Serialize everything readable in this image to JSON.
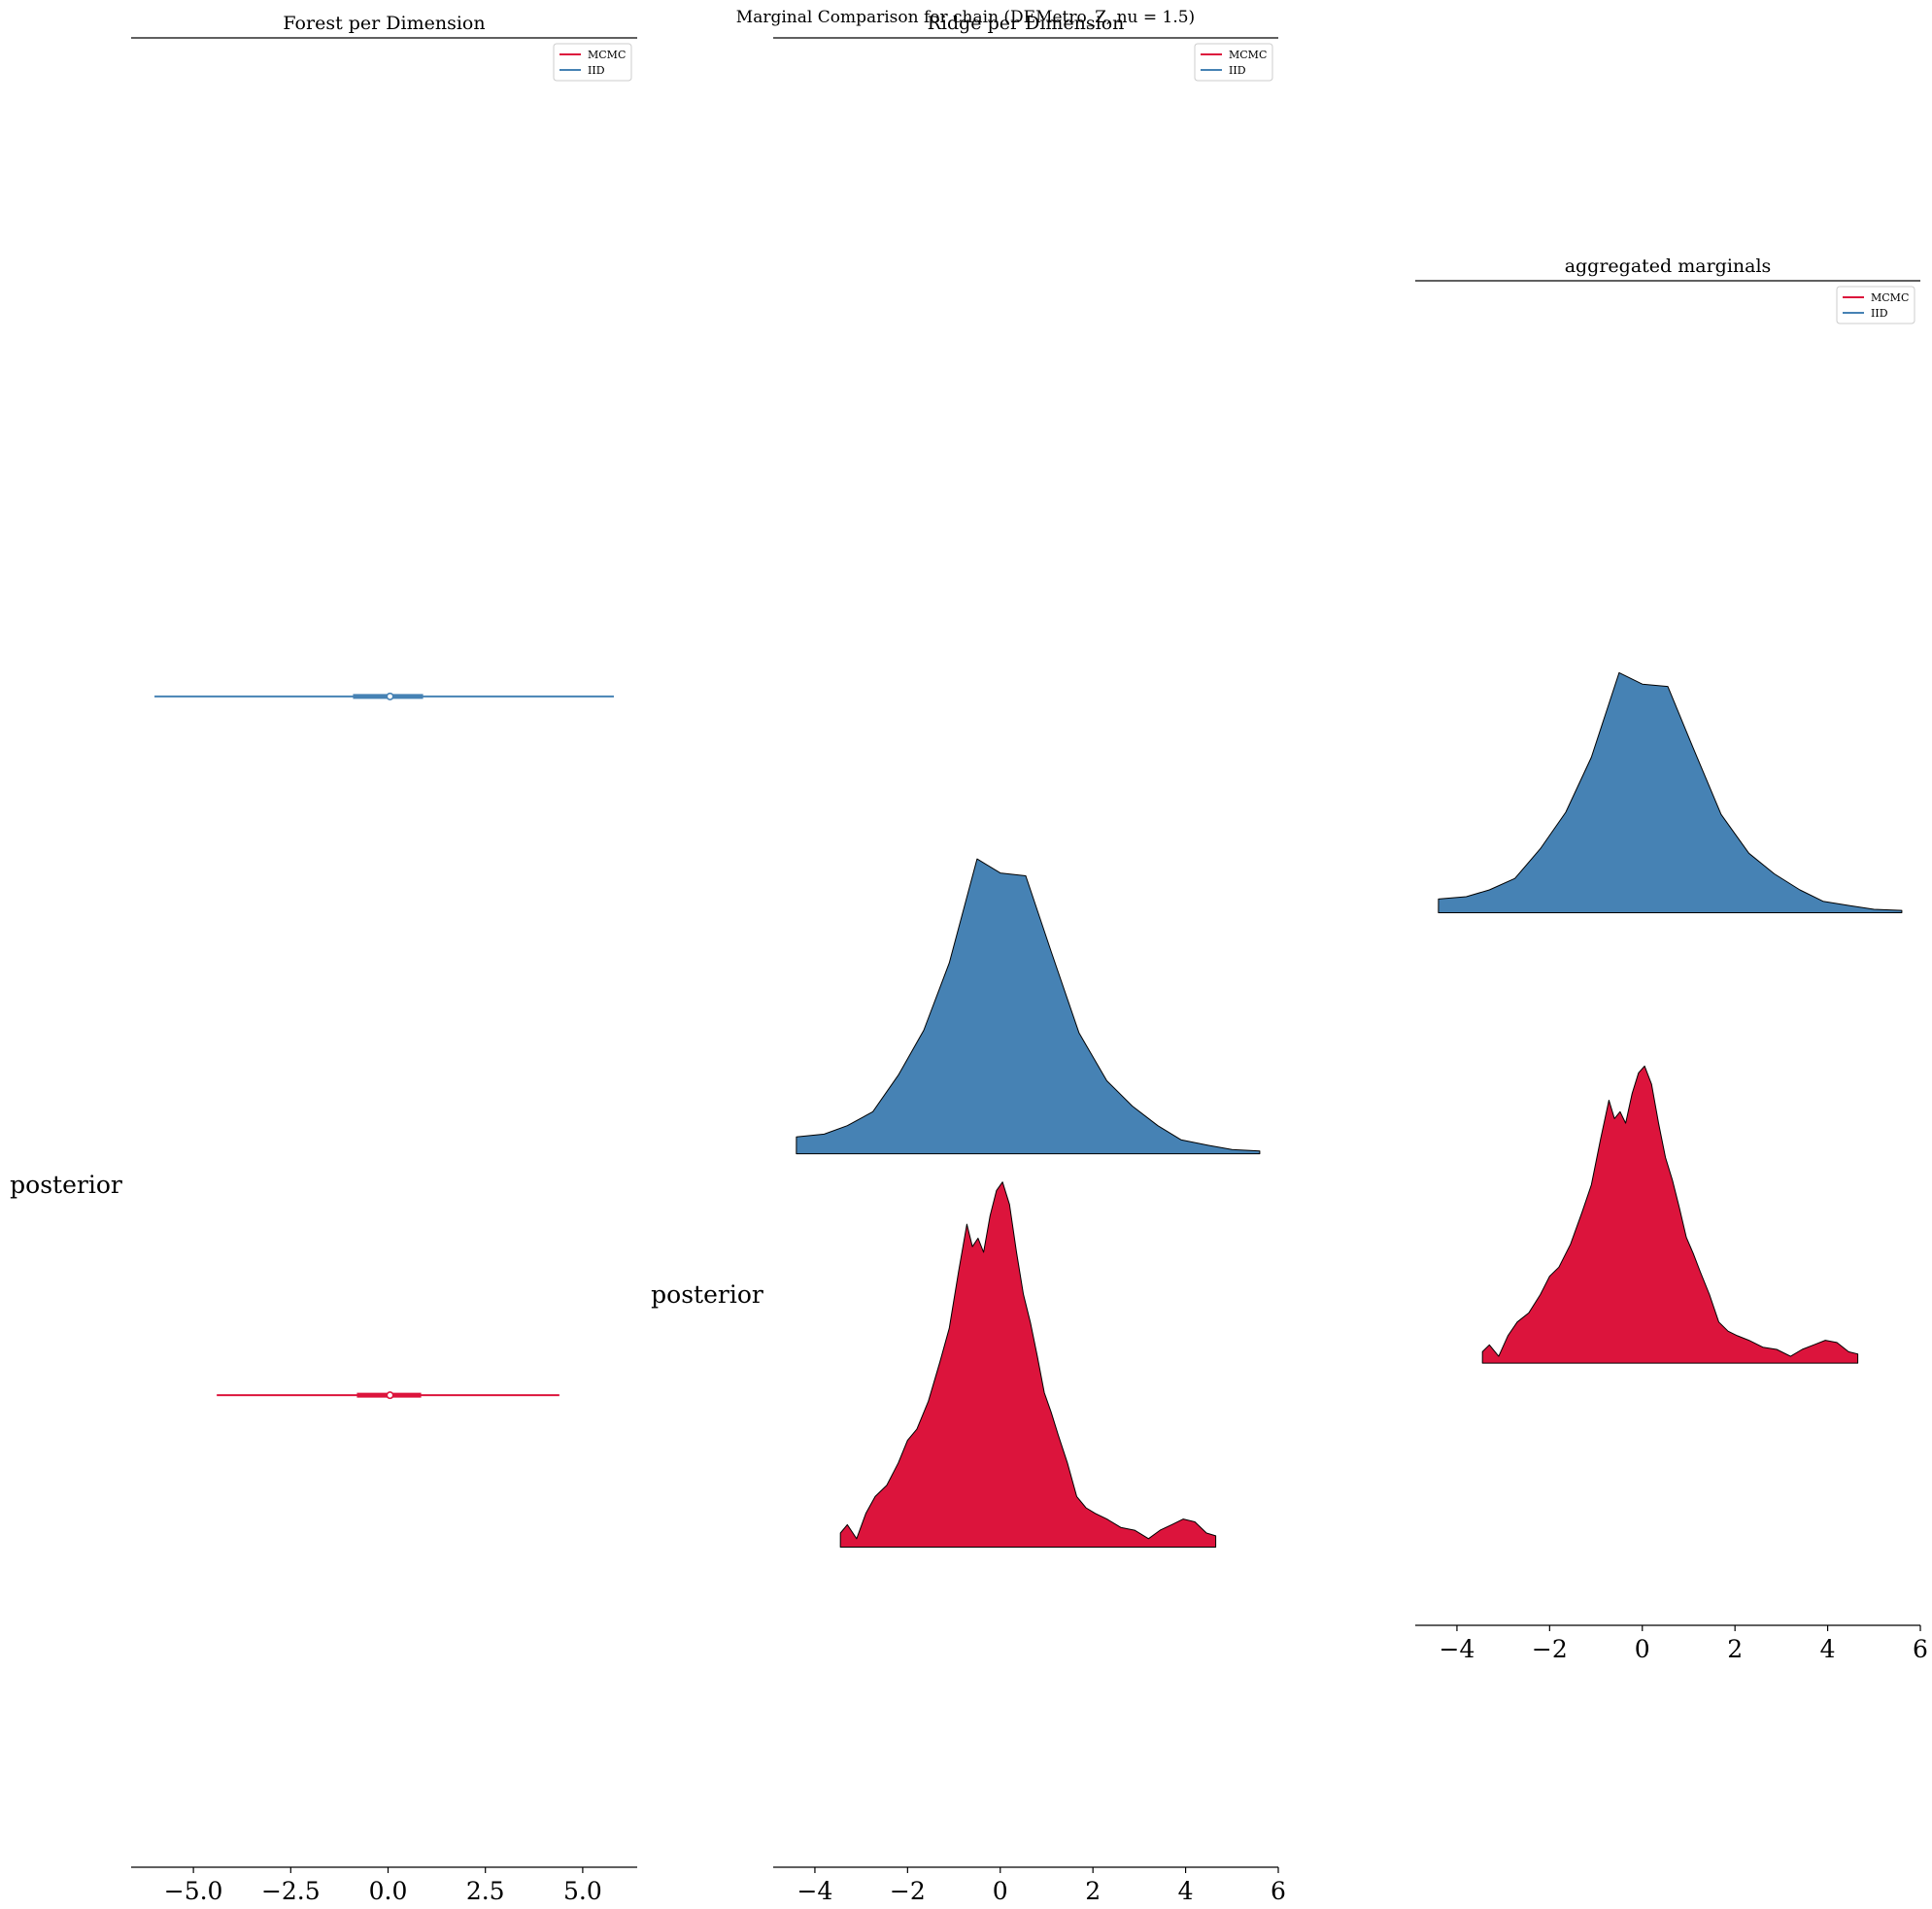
{
  "figure": {
    "suptitle": "Marginal Comparison for chain (DEMetro_Z, nu = 1.5)"
  },
  "colors": {
    "mcmc": "#DC143C",
    "iid": "#4682B4",
    "outline": "#000000"
  },
  "chart_data": [
    {
      "type": "forest",
      "title": "Forest per Dimension",
      "ylabel": "posterior",
      "xlim": [
        -6.6,
        6.4
      ],
      "xticks": [
        -5.0,
        -2.5,
        0.0,
        2.5,
        5.0
      ],
      "xtick_labels": [
        "−5.0",
        "−2.5",
        "0.0",
        "2.5",
        "5.0"
      ],
      "legend": {
        "placement": "top-right",
        "entries": [
          "MCMC",
          "IID"
        ]
      },
      "series": [
        {
          "name": "IID",
          "color_key": "iid",
          "level": 0.64,
          "hdi_low": -6.0,
          "hdi_high": 5.8,
          "iqr_low": -0.9,
          "iqr_high": 0.9,
          "point": 0.05
        },
        {
          "name": "MCMC",
          "color_key": "mcmc",
          "level": 0.258,
          "hdi_low": -4.4,
          "hdi_high": 4.4,
          "iqr_low": -0.8,
          "iqr_high": 0.85,
          "point": 0.05
        }
      ]
    },
    {
      "type": "ridge",
      "title": "Ridge per Dimension",
      "ylabel": "posterior",
      "xlim": [
        -4.9,
        6.0
      ],
      "xticks": [
        -4,
        -2,
        0,
        2,
        4,
        6
      ],
      "xtick_labels": [
        "−4",
        "−2",
        "0",
        "2",
        "4",
        "6"
      ],
      "legend": {
        "placement": "top-right",
        "entries": [
          "MCMC",
          "IID"
        ]
      },
      "series": [
        {
          "name": "IID",
          "color_key": "iid",
          "baseline": 0.39,
          "amplitude": 0.1535,
          "x": [
            -4.4,
            -3.8,
            -3.3,
            -2.75,
            -2.2,
            -1.65,
            -1.1,
            -0.5,
            0.0,
            0.55,
            1.1,
            1.7,
            2.3,
            2.85,
            3.4,
            3.9,
            4.5,
            5.0,
            5.6
          ],
          "y": [
            0.06,
            0.07,
            0.1,
            0.15,
            0.28,
            0.44,
            0.68,
            1.05,
            1.0,
            0.99,
            0.72,
            0.43,
            0.26,
            0.17,
            0.1,
            0.05,
            0.03,
            0.015,
            0.01
          ]
        },
        {
          "name": "MCMC",
          "color_key": "mcmc",
          "baseline": 0.175,
          "amplitude": 0.1535,
          "x": [
            -3.45,
            -3.3,
            -3.1,
            -2.9,
            -2.7,
            -2.45,
            -2.2,
            -2.0,
            -1.8,
            -1.55,
            -1.3,
            -1.1,
            -0.9,
            -0.72,
            -0.6,
            -0.48,
            -0.36,
            -0.22,
            -0.08,
            0.05,
            0.2,
            0.35,
            0.5,
            0.65,
            0.8,
            0.95,
            1.1,
            1.25,
            1.45,
            1.65,
            1.85,
            2.05,
            2.3,
            2.6,
            2.9,
            3.2,
            3.45,
            3.7,
            3.95,
            4.2,
            4.45,
            4.65
          ],
          "y": [
            0.05,
            0.08,
            0.03,
            0.12,
            0.18,
            0.22,
            0.3,
            0.38,
            0.42,
            0.52,
            0.66,
            0.78,
            0.98,
            1.15,
            1.07,
            1.1,
            1.05,
            1.18,
            1.27,
            1.3,
            1.22,
            1.05,
            0.9,
            0.8,
            0.68,
            0.55,
            0.48,
            0.4,
            0.3,
            0.18,
            0.14,
            0.12,
            0.1,
            0.07,
            0.06,
            0.03,
            0.06,
            0.08,
            0.1,
            0.09,
            0.05,
            0.04
          ]
        }
      ]
    },
    {
      "type": "ridge",
      "title": "aggregated marginals",
      "ylabel": "",
      "xlim": [
        -4.9,
        6.0
      ],
      "xticks": [
        -4,
        -2,
        0,
        2,
        4,
        6
      ],
      "xtick_labels": [
        "−4",
        "−2",
        "0",
        "2",
        "4",
        "6"
      ],
      "legend": {
        "placement": "top-right",
        "entries": [
          "MCMC",
          "IID"
        ]
      },
      "series": [
        {
          "name": "IID",
          "color_key": "iid",
          "baseline": 0.53,
          "amplitude": 0.17,
          "x": [
            -4.4,
            -3.8,
            -3.3,
            -2.75,
            -2.2,
            -1.65,
            -1.1,
            -0.5,
            0.0,
            0.55,
            1.1,
            1.7,
            2.3,
            2.85,
            3.4,
            3.9,
            4.5,
            5.0,
            5.6
          ],
          "y": [
            0.06,
            0.07,
            0.1,
            0.15,
            0.28,
            0.44,
            0.68,
            1.05,
            1.0,
            0.99,
            0.72,
            0.43,
            0.26,
            0.17,
            0.1,
            0.05,
            0.03,
            0.015,
            0.01
          ]
        },
        {
          "name": "MCMC",
          "color_key": "mcmc",
          "baseline": 0.195,
          "amplitude": 0.17,
          "x": [
            -3.45,
            -3.3,
            -3.1,
            -2.9,
            -2.7,
            -2.45,
            -2.2,
            -2.0,
            -1.8,
            -1.55,
            -1.3,
            -1.1,
            -0.9,
            -0.72,
            -0.6,
            -0.48,
            -0.36,
            -0.22,
            -0.08,
            0.05,
            0.2,
            0.35,
            0.5,
            0.65,
            0.8,
            0.95,
            1.1,
            1.25,
            1.45,
            1.65,
            1.85,
            2.05,
            2.3,
            2.6,
            2.9,
            3.2,
            3.45,
            3.7,
            3.95,
            4.2,
            4.45,
            4.65
          ],
          "y": [
            0.05,
            0.08,
            0.03,
            0.12,
            0.18,
            0.22,
            0.3,
            0.38,
            0.42,
            0.52,
            0.66,
            0.78,
            0.98,
            1.15,
            1.07,
            1.1,
            1.05,
            1.18,
            1.27,
            1.3,
            1.22,
            1.05,
            0.9,
            0.8,
            0.68,
            0.55,
            0.48,
            0.4,
            0.3,
            0.18,
            0.14,
            0.12,
            0.1,
            0.07,
            0.06,
            0.03,
            0.06,
            0.08,
            0.1,
            0.09,
            0.05,
            0.04
          ]
        }
      ]
    }
  ]
}
